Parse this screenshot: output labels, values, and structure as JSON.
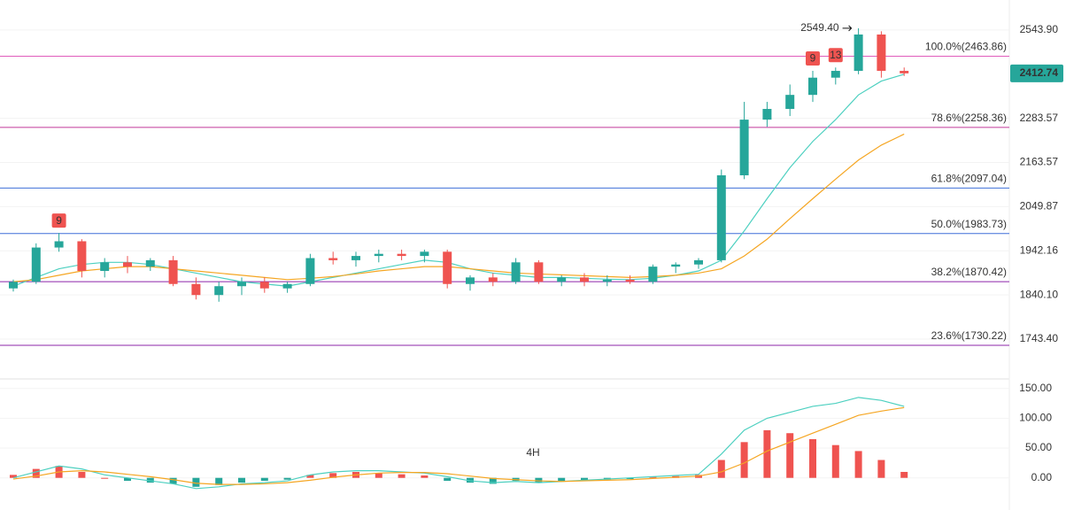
{
  "chart_data": [
    {
      "type": "candlestick",
      "log_scale": true,
      "ylim": [
        1666,
        2639
      ],
      "yticks": [
        {
          "value": 2543.9,
          "label": "2543.90"
        },
        {
          "value": 2283.57,
          "label": "2283.57"
        },
        {
          "value": 2163.57,
          "label": "2163.57"
        },
        {
          "value": 2049.87,
          "label": "2049.87"
        },
        {
          "value": 1942.16,
          "label": "1942.16"
        },
        {
          "value": 1840.1,
          "label": "1840.10"
        },
        {
          "value": 1743.4,
          "label": "1743.40"
        }
      ],
      "up_color": "#26a69a",
      "down_color": "#ef5350",
      "open": [
        1855,
        1870,
        1950,
        1965,
        1895,
        1915,
        1905,
        1920,
        1865,
        1840,
        1860,
        1870,
        1855,
        1865,
        1925,
        1920,
        1930,
        1935,
        1930,
        1940,
        1865,
        1880,
        1870,
        1915,
        1870,
        1880,
        1870,
        1875,
        1870,
        1905,
        1910,
        1920,
        2130,
        2280,
        2310,
        2350,
        2400,
        2420,
        2530,
        2420
      ],
      "high": [
        1875,
        1960,
        1985,
        1970,
        1925,
        1930,
        1925,
        1930,
        1880,
        1870,
        1880,
        1880,
        1870,
        1935,
        1940,
        1940,
        1945,
        1945,
        1945,
        1945,
        1885,
        1890,
        1925,
        1920,
        1885,
        1890,
        1885,
        1885,
        1910,
        1915,
        1925,
        2145,
        2330,
        2330,
        2380,
        2420,
        2430,
        2549.4,
        2540,
        2430
      ],
      "low": [
        1848,
        1865,
        1940,
        1880,
        1880,
        1890,
        1895,
        1860,
        1830,
        1825,
        1840,
        1845,
        1845,
        1860,
        1910,
        1905,
        1915,
        1920,
        1915,
        1855,
        1850,
        1860,
        1865,
        1865,
        1860,
        1860,
        1860,
        1865,
        1865,
        1890,
        1900,
        1915,
        2120,
        2260,
        2290,
        2330,
        2380,
        2410,
        2400,
        2405
      ],
      "close": [
        1870,
        1950,
        1965,
        1895,
        1915,
        1905,
        1920,
        1865,
        1840,
        1860,
        1870,
        1855,
        1865,
        1925,
        1920,
        1930,
        1935,
        1930,
        1940,
        1865,
        1880,
        1870,
        1915,
        1870,
        1880,
        1870,
        1875,
        1870,
        1905,
        1910,
        1920,
        2130,
        2280,
        2310,
        2350,
        2400,
        2420,
        2530,
        2420,
        2412.74
      ],
      "lines": [
        {
          "color": "#4dd0c0",
          "values": [
            1860,
            1880,
            1900,
            1910,
            1915,
            1915,
            1910,
            1900,
            1890,
            1880,
            1870,
            1865,
            1860,
            1870,
            1880,
            1890,
            1900,
            1910,
            1920,
            1915,
            1900,
            1890,
            1885,
            1880,
            1880,
            1878,
            1876,
            1875,
            1878,
            1885,
            1895,
            1920,
            1990,
            2070,
            2150,
            2220,
            2280,
            2350,
            2390,
            2410
          ]
        },
        {
          "color": "#f5a623",
          "values": [
            1870,
            1875,
            1885,
            1895,
            1900,
            1905,
            1905,
            1900,
            1895,
            1890,
            1885,
            1880,
            1875,
            1878,
            1882,
            1888,
            1895,
            1900,
            1905,
            1905,
            1900,
            1895,
            1890,
            1888,
            1886,
            1884,
            1882,
            1880,
            1882,
            1885,
            1890,
            1900,
            1930,
            1970,
            2020,
            2070,
            2120,
            2170,
            2210,
            2240
          ]
        }
      ],
      "fib_levels": [
        {
          "label": "100.0%(2463.86)",
          "value": 2463.86,
          "color": "#e05cbc"
        },
        {
          "label": "78.6%(2258.36)",
          "value": 2258.36,
          "color": "#c2399a"
        },
        {
          "label": "61.8%(2097.04)",
          "value": 2097.04,
          "color": "#3f6fd8"
        },
        {
          "label": "50.0%(1983.73)",
          "value": 1983.73,
          "color": "#3f6fd8"
        },
        {
          "label": "38.2%(1870.42)",
          "value": 1870.42,
          "color": "#8e24aa"
        },
        {
          "label": "23.6%(1730.22)",
          "value": 1730.22,
          "color": "#8e24aa"
        }
      ],
      "high_annotation": {
        "value": 2549.4,
        "label": "2549.40"
      },
      "current_price": 2412.74,
      "markers": [
        "9",
        "9",
        "13"
      ]
    },
    {
      "type": "macd",
      "ylim": [
        -45,
        163
      ],
      "yticks": [
        {
          "value": 150,
          "label": "150.00"
        },
        {
          "value": 100,
          "label": "100.00"
        },
        {
          "value": 50,
          "label": "50.00"
        },
        {
          "value": 0,
          "label": "0.00"
        }
      ],
      "up_color": "#ef5350",
      "down_color": "#26a69a",
      "histogram": [
        5,
        15,
        20,
        10,
        0,
        -5,
        -8,
        -10,
        -15,
        -12,
        -8,
        -5,
        -3,
        5,
        8,
        10,
        8,
        6,
        4,
        -5,
        -8,
        -10,
        -5,
        -8,
        -6,
        -4,
        -3,
        -2,
        2,
        3,
        5,
        30,
        60,
        80,
        75,
        65,
        55,
        45,
        30,
        10
      ],
      "lines": [
        {
          "color": "#4dd0c0",
          "values": [
            0,
            10,
            20,
            15,
            5,
            0,
            -5,
            -10,
            -18,
            -15,
            -10,
            -8,
            -5,
            5,
            10,
            12,
            12,
            10,
            8,
            2,
            -5,
            -8,
            -6,
            -8,
            -6,
            -4,
            -2,
            0,
            2,
            4,
            6,
            40,
            80,
            100,
            110,
            120,
            125,
            135,
            130,
            120
          ]
        },
        {
          "color": "#f5a623",
          "values": [
            -2,
            3,
            10,
            12,
            10,
            6,
            2,
            -3,
            -9,
            -11,
            -11,
            -10,
            -8,
            -4,
            1,
            5,
            8,
            9,
            9,
            7,
            3,
            -1,
            -3,
            -5,
            -6,
            -5,
            -4,
            -3,
            -1,
            1,
            3,
            10,
            25,
            45,
            60,
            75,
            90,
            105,
            112,
            118
          ]
        }
      ],
      "watermark": "4H"
    }
  ]
}
